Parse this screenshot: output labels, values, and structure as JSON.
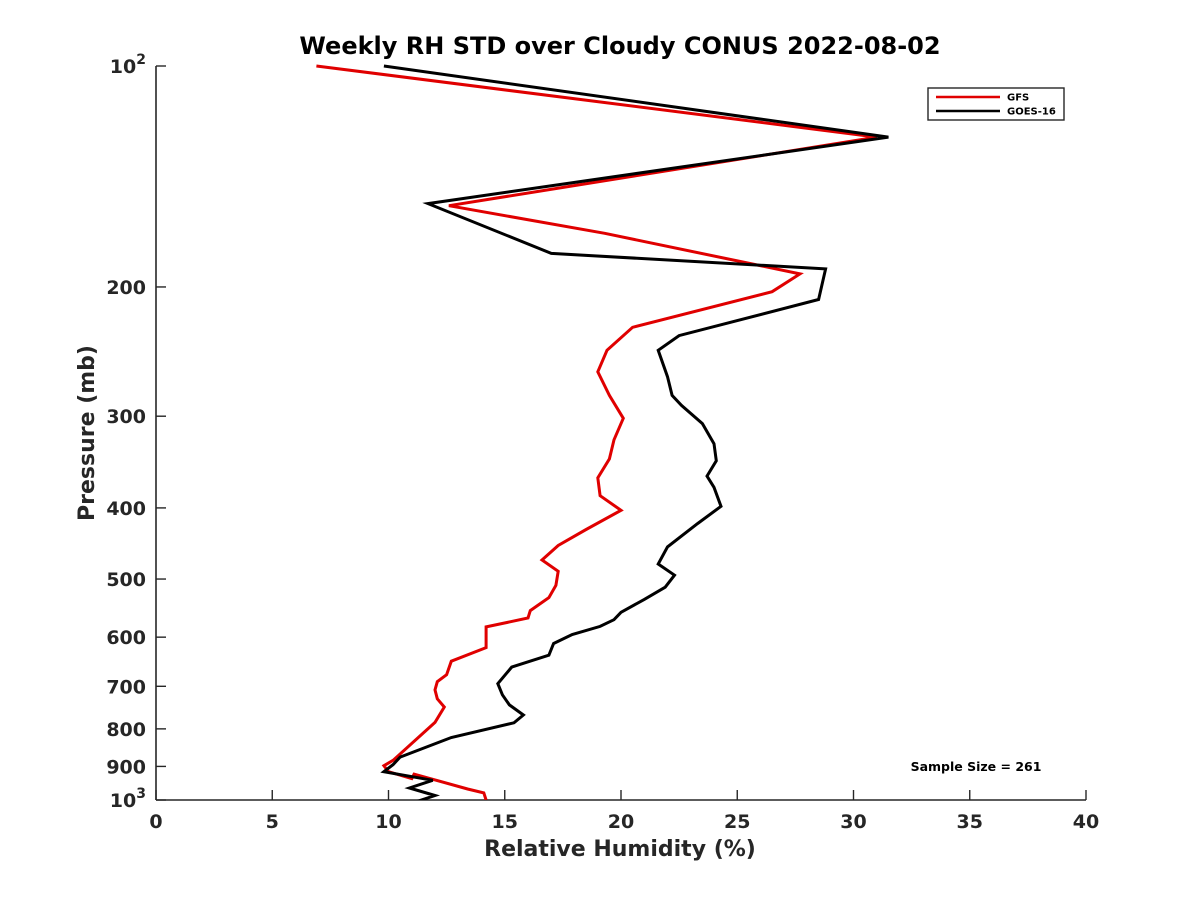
{
  "chart_data": {
    "type": "line",
    "title": "Weekly RH STD over Cloudy CONUS 2022-08-02",
    "xlabel": "Relative Humidity (%)",
    "ylabel": "Pressure (mb)",
    "xlim": [
      0,
      40
    ],
    "ylim": [
      100,
      1000
    ],
    "y_scale": "log",
    "y_reversed": true,
    "x_ticks": [
      0,
      5,
      10,
      15,
      20,
      25,
      30,
      35,
      40
    ],
    "x_tick_labels": [
      "0",
      "5",
      "10",
      "15",
      "20",
      "25",
      "30",
      "35",
      "40"
    ],
    "y_ticks": [
      100,
      200,
      300,
      400,
      500,
      600,
      700,
      800,
      900,
      1000
    ],
    "y_tick_labels": [
      {
        "base": "10",
        "exp": "2"
      },
      {
        "base": "200"
      },
      {
        "base": "300"
      },
      {
        "base": "400"
      },
      {
        "base": "500"
      },
      {
        "base": "600"
      },
      {
        "base": "700"
      },
      {
        "base": "800"
      },
      {
        "base": "900"
      },
      {
        "base": "10",
        "exp": "3"
      }
    ],
    "grid": false,
    "legend_location": "top-right",
    "annotation": "Sample Size = 261",
    "series": [
      {
        "name": "GFS",
        "color": "#e00000",
        "points": [
          [
            6.9,
            100
          ],
          [
            31.0,
            125
          ],
          [
            12.6,
            155
          ],
          [
            19.3,
            169
          ],
          [
            27.7,
            192
          ],
          [
            26.5,
            203
          ],
          [
            20.5,
            227
          ],
          [
            19.4,
            244
          ],
          [
            19.0,
            261
          ],
          [
            19.5,
            281
          ],
          [
            20.1,
            302
          ],
          [
            19.7,
            323
          ],
          [
            19.5,
            343
          ],
          [
            19.0,
            364
          ],
          [
            19.1,
            385
          ],
          [
            20.0,
            403
          ],
          [
            18.5,
            428
          ],
          [
            17.3,
            450
          ],
          [
            16.6,
            471
          ],
          [
            17.3,
            488
          ],
          [
            17.2,
            510
          ],
          [
            16.9,
            530
          ],
          [
            16.1,
            552
          ],
          [
            16.0,
            565
          ],
          [
            14.2,
            581
          ],
          [
            14.2,
            620
          ],
          [
            12.7,
            647
          ],
          [
            12.5,
            675
          ],
          [
            12.1,
            690
          ],
          [
            12.0,
            708
          ],
          [
            12.1,
            728
          ],
          [
            12.4,
            747
          ],
          [
            12.0,
            784
          ],
          [
            10.2,
            883
          ],
          [
            9.8,
            898
          ],
          [
            10.0,
            915
          ],
          [
            11.0,
            935
          ],
          [
            11.1,
            922
          ],
          [
            13.4,
            966
          ],
          [
            14.1,
            978
          ],
          [
            14.2,
            1000
          ]
        ]
      },
      {
        "name": "GOES-16",
        "color": "#000000",
        "points": [
          [
            9.8,
            100
          ],
          [
            31.5,
            125
          ],
          [
            11.7,
            154
          ],
          [
            17.0,
            180
          ],
          [
            28.8,
            189
          ],
          [
            28.5,
            208
          ],
          [
            22.5,
            233
          ],
          [
            21.6,
            244
          ],
          [
            22.0,
            265
          ],
          [
            22.2,
            281
          ],
          [
            22.6,
            290
          ],
          [
            23.5,
            307
          ],
          [
            24.0,
            327
          ],
          [
            24.1,
            345
          ],
          [
            23.7,
            362
          ],
          [
            24.0,
            375
          ],
          [
            24.3,
            398
          ],
          [
            23.3,
            420
          ],
          [
            22.0,
            452
          ],
          [
            21.6,
            477
          ],
          [
            22.3,
            494
          ],
          [
            21.9,
            513
          ],
          [
            21.0,
            533
          ],
          [
            20.0,
            555
          ],
          [
            19.7,
            568
          ],
          [
            19.1,
            580
          ],
          [
            17.9,
            595
          ],
          [
            17.1,
            612
          ],
          [
            16.9,
            635
          ],
          [
            15.3,
            659
          ],
          [
            14.7,
            694
          ],
          [
            14.9,
            719
          ],
          [
            15.2,
            742
          ],
          [
            15.8,
            766
          ],
          [
            15.4,
            785
          ],
          [
            12.7,
            822
          ],
          [
            10.5,
            874
          ],
          [
            10.2,
            895
          ],
          [
            9.8,
            915
          ],
          [
            11.9,
            940
          ],
          [
            10.9,
            963
          ],
          [
            12.0,
            986
          ],
          [
            11.0,
            1010
          ],
          [
            13.5,
            1005
          ]
        ]
      }
    ]
  }
}
